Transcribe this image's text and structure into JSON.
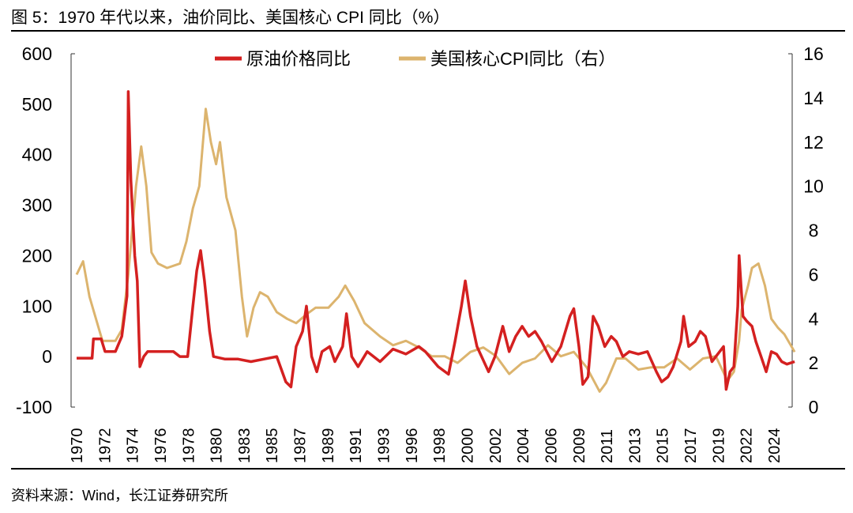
{
  "title": "图 5：1970 年代以来，油价同比、美国核心 CPI 同比（%）",
  "source": "资料来源：Wind，长江证券研究所",
  "chart_data": {
    "type": "line",
    "title": "1970 年代以来，油价同比、美国核心 CPI 同比（%）",
    "x_tick_labels": [
      "1970",
      "1972",
      "1974",
      "1976",
      "1978",
      "1980",
      "1983",
      "1985",
      "1987",
      "1989",
      "1991",
      "1993",
      "1996",
      "1998",
      "2000",
      "2002",
      "2004",
      "2006",
      "2009",
      "2011",
      "2013",
      "2015",
      "2017",
      "2019",
      "2022",
      "2024"
    ],
    "x_range": [
      1970,
      2025.7
    ],
    "y_left": {
      "range": [
        -100,
        600
      ],
      "ticks": [
        -100,
        0,
        100,
        200,
        300,
        400,
        500,
        600
      ]
    },
    "y_right": {
      "range": [
        0,
        16
      ],
      "ticks": [
        0,
        2,
        4,
        6,
        8,
        10,
        12,
        14,
        16
      ]
    },
    "grid": false,
    "legend_placement": "top-center",
    "series": [
      {
        "name": "原油价格同比",
        "axis": "left",
        "color": "#d42020",
        "x": [
          1970,
          1971.2,
          1971.3,
          1971.9,
          1972.2,
          1973,
          1973.5,
          1973.9,
          1974.0,
          1974.2,
          1974.5,
          1974.7,
          1974.9,
          1975.2,
          1975.5,
          1976.5,
          1977.5,
          1978,
          1978.6,
          1979,
          1979.3,
          1979.6,
          1979.9,
          1980.3,
          1980.6,
          1981.5,
          1982.5,
          1983.5,
          1984.5,
          1985.5,
          1986.2,
          1986.6,
          1987,
          1987.5,
          1987.8,
          1988.2,
          1988.6,
          1989,
          1989.6,
          1990,
          1990.6,
          1990.9,
          1991.3,
          1991.8,
          1992.5,
          1993.5,
          1994.5,
          1995.5,
          1996.5,
          1997,
          1998,
          1998.8,
          1999.3,
          1999.8,
          2000.1,
          2000.5,
          2001,
          2001.9,
          2002.4,
          2003,
          2003.5,
          2004,
          2004.5,
          2005,
          2005.5,
          2006,
          2006.8,
          2007.5,
          2008.2,
          2008.5,
          2008.9,
          2009.2,
          2009.6,
          2010.0,
          2010.4,
          2010.9,
          2011.4,
          2011.8,
          2012.3,
          2012.8,
          2013.5,
          2014.2,
          2014.9,
          2015.3,
          2015.8,
          2016.2,
          2016.8,
          2017.0,
          2017.4,
          2017.9,
          2018.3,
          2018.7,
          2019.2,
          2019.8,
          2020.1,
          2020.3,
          2020.6,
          2020.9,
          2021.2,
          2021.3,
          2021.6,
          2021.9,
          2022.3,
          2022.6,
          2023.0,
          2023.4,
          2023.8,
          2024.2,
          2024.6,
          2025.0,
          2025.6
        ],
        "values": [
          -3,
          -3,
          35,
          35,
          10,
          10,
          40,
          120,
          525,
          350,
          200,
          150,
          -20,
          0,
          10,
          10,
          10,
          0,
          0,
          100,
          170,
          210,
          150,
          50,
          0,
          -5,
          -5,
          -10,
          -5,
          0,
          -50,
          -60,
          20,
          50,
          100,
          0,
          -30,
          10,
          20,
          -10,
          20,
          85,
          0,
          -20,
          10,
          -10,
          15,
          5,
          20,
          10,
          -20,
          -35,
          30,
          100,
          150,
          80,
          20,
          -30,
          0,
          60,
          10,
          40,
          60,
          40,
          50,
          30,
          -10,
          20,
          80,
          95,
          20,
          -55,
          -40,
          80,
          60,
          20,
          40,
          30,
          0,
          10,
          5,
          10,
          -30,
          -50,
          -40,
          -20,
          30,
          80,
          20,
          30,
          50,
          40,
          -10,
          10,
          20,
          -65,
          -30,
          -20,
          100,
          200,
          80,
          70,
          60,
          30,
          0,
          -30,
          10,
          5,
          -10,
          -15,
          -10
        ]
      },
      {
        "name": "美国核心CPI同比（右）",
        "axis": "right",
        "color": "#dcb46e",
        "x": [
          1970,
          1970.5,
          1971,
          1971.5,
          1972,
          1972.5,
          1973,
          1973.5,
          1974,
          1974.6,
          1975.0,
          1975.4,
          1975.8,
          1976.3,
          1977,
          1978,
          1978.5,
          1979,
          1979.5,
          1980.0,
          1980.4,
          1980.8,
          1981.1,
          1981.6,
          1982.3,
          1982.8,
          1983.2,
          1983.7,
          1984.2,
          1984.8,
          1985.5,
          1986.3,
          1987,
          1987.8,
          1988.5,
          1989.5,
          1990.3,
          1990.8,
          1991.5,
          1992.3,
          1993.5,
          1994.5,
          1995.5,
          1996.5,
          1997.5,
          1998.5,
          1999.5,
          2000.5,
          2001.5,
          2002.5,
          2003.5,
          2004.5,
          2005.5,
          2006.5,
          2007.5,
          2008.5,
          2009.5,
          2010.5,
          2011,
          2011.8,
          2012.5,
          2013.5,
          2014.5,
          2015.5,
          2016.5,
          2017.5,
          2018.5,
          2019.5,
          2020.4,
          2020.9,
          2021.3,
          2021.5,
          2022.0,
          2022.3,
          2022.8,
          2023.3,
          2023.8,
          2024.3,
          2024.8,
          2025.3,
          2025.6
        ],
        "values": [
          6,
          6.6,
          5,
          4,
          3,
          3,
          3,
          3.5,
          6,
          10,
          11.8,
          10,
          7,
          6.5,
          6.3,
          6.5,
          7.5,
          9,
          10,
          13.5,
          12,
          11,
          12,
          9.5,
          8,
          5,
          3.2,
          4.5,
          5.2,
          5,
          4.3,
          4,
          3.8,
          4.2,
          4.5,
          4.5,
          5,
          5.5,
          4.8,
          3.8,
          3.2,
          2.8,
          3,
          2.7,
          2.3,
          2.3,
          2,
          2.5,
          2.7,
          2.3,
          1.5,
          2,
          2.2,
          2.8,
          2.3,
          2.5,
          1.8,
          0.7,
          1.1,
          2.2,
          2.2,
          1.7,
          1.8,
          1.8,
          2.2,
          1.7,
          2.2,
          2.3,
          1.2,
          1.6,
          3,
          4.4,
          5.5,
          6.3,
          6.5,
          5.5,
          4,
          3.6,
          3.3,
          2.8,
          2.5
        ]
      }
    ]
  }
}
